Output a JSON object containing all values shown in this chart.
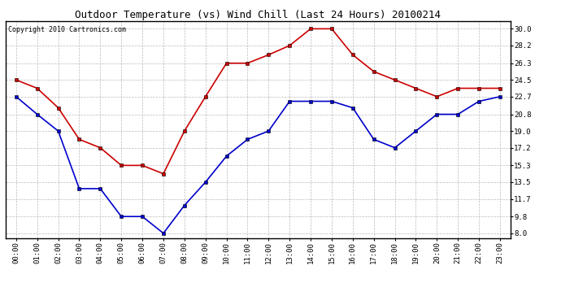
{
  "title": "Outdoor Temperature (vs) Wind Chill (Last 24 Hours) 20100214",
  "copyright": "Copyright 2010 Cartronics.com",
  "hours": [
    "00:00",
    "01:00",
    "02:00",
    "03:00",
    "04:00",
    "05:00",
    "06:00",
    "07:00",
    "08:00",
    "09:00",
    "10:00",
    "11:00",
    "12:00",
    "13:00",
    "14:00",
    "15:00",
    "16:00",
    "17:00",
    "18:00",
    "19:00",
    "20:00",
    "21:00",
    "22:00",
    "23:00"
  ],
  "temp": [
    22.7,
    20.8,
    19.0,
    12.8,
    12.8,
    9.8,
    9.8,
    8.0,
    11.0,
    13.5,
    16.3,
    18.1,
    19.0,
    22.2,
    22.2,
    22.2,
    21.5,
    18.1,
    17.2,
    19.0,
    20.8,
    20.8,
    22.2,
    22.7
  ],
  "wind_chill": [
    24.5,
    23.6,
    21.5,
    18.1,
    17.2,
    15.3,
    15.3,
    14.4,
    19.0,
    22.7,
    26.3,
    26.3,
    27.2,
    28.2,
    30.0,
    30.0,
    27.2,
    25.4,
    24.5,
    23.6,
    22.7,
    23.6,
    23.6,
    23.6
  ],
  "temp_color": "#0000cc",
  "wind_chill_color": "#cc0000",
  "bg_color": "#ffffff",
  "plot_bg_color": "#ffffff",
  "grid_color": "#bbbbbb",
  "yticks": [
    8.0,
    9.8,
    11.7,
    13.5,
    15.3,
    17.2,
    19.0,
    20.8,
    22.7,
    24.5,
    26.3,
    28.2,
    30.0
  ],
  "ylim": [
    7.5,
    30.8
  ],
  "marker": "s",
  "marker_size": 3,
  "linewidth": 1.2,
  "title_fontsize": 9,
  "tick_fontsize": 6.5,
  "copyright_fontsize": 6
}
